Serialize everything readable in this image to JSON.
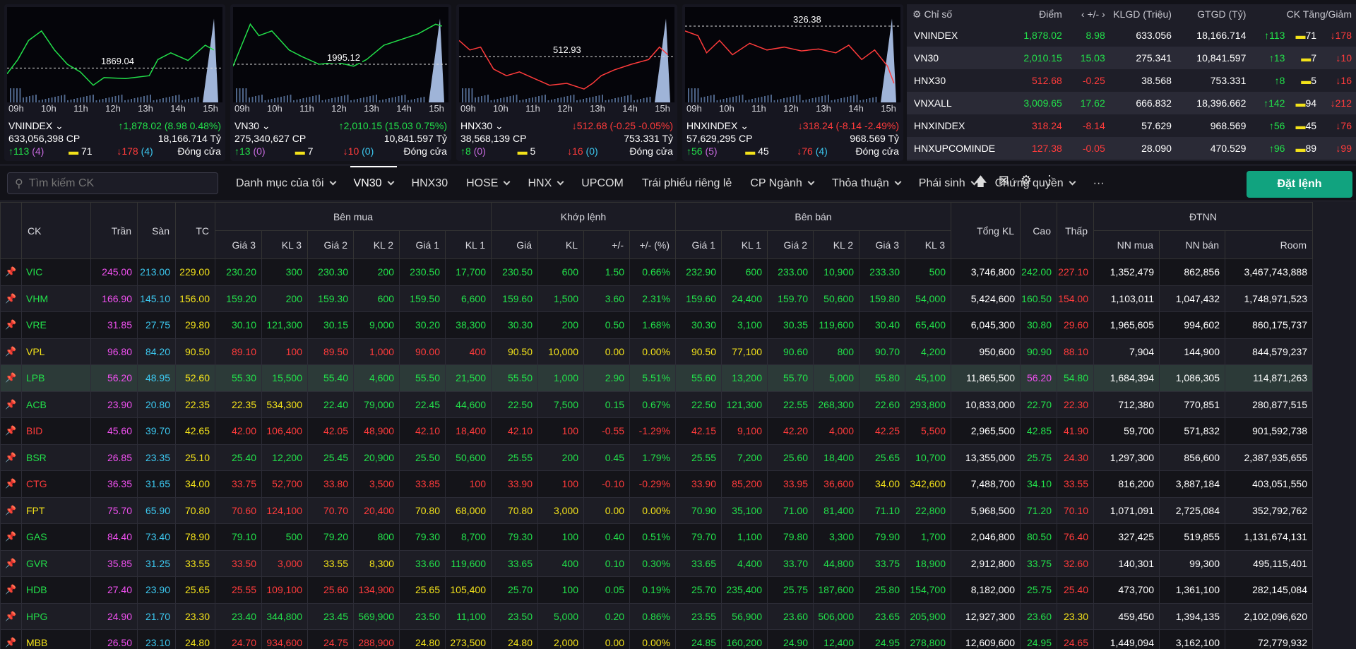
{
  "charts": [
    {
      "name": "VNINDEX",
      "ref_label": "1869.04",
      "change": "↑1,878.02 (8.98 0.48%)",
      "dir": "up",
      "volume": "633,056,398 CP",
      "value": "18,166.714 Tỷ",
      "up": "↑113",
      "up_ceil": "(4)",
      "ref": "71",
      "down": "↓178",
      "down_floor": "(4)",
      "status": "Đóng cửa"
    },
    {
      "name": "VN30",
      "ref_label": "1995.12",
      "change": "↑2,010.15 (15.03 0.75%)",
      "dir": "up",
      "volume": "275,340,627 CP",
      "value": "10,841.597 Tỷ",
      "up": "↑13",
      "up_ceil": "(0)",
      "ref": "7",
      "down": "↓10",
      "down_floor": "(0)",
      "status": "Đóng cửa"
    },
    {
      "name": "HNX30",
      "ref_label": "512.93",
      "change": "↓512.68 (-0.25 -0.05%)",
      "dir": "dn",
      "volume": "38,568,139 CP",
      "value": "753.331 Tỷ",
      "up": "↑8",
      "up_ceil": "(0)",
      "ref": "5",
      "down": "↓16",
      "down_floor": "(0)",
      "status": "Đóng cửa"
    },
    {
      "name": "HNXINDEX",
      "ref_label": "326.38",
      "change": "↓318.24 (-8.14 -2.49%)",
      "dir": "dn",
      "volume": "57,629,295 CP",
      "value": "968.569 Tỷ",
      "up": "↑56",
      "up_ceil": "(5)",
      "ref": "45",
      "down": "↓76",
      "down_floor": "(4)",
      "status": "Đóng cửa"
    }
  ],
  "time_ticks": [
    "09h",
    "10h",
    "11h",
    "12h",
    "13h",
    "14h",
    "15h"
  ],
  "index_table": {
    "headers": [
      "Chỉ số",
      "Điểm",
      "+/-",
      "KLGD (Triệu)",
      "GTGD (Tỷ)",
      "CK Tăng/Giảm"
    ],
    "rows": [
      {
        "name": "VNINDEX",
        "point": "1,878.02",
        "chg": "8.98",
        "vol": "633.056",
        "val": "18,166.714",
        "up": "↑113",
        "ref": "71",
        "down": "↓178",
        "dir": "up"
      },
      {
        "name": "VN30",
        "point": "2,010.15",
        "chg": "15.03",
        "vol": "275.341",
        "val": "10,841.597",
        "up": "↑13",
        "ref": "7",
        "down": "↓10",
        "dir": "up"
      },
      {
        "name": "HNX30",
        "point": "512.68",
        "chg": "-0.25",
        "vol": "38.568",
        "val": "753.331",
        "up": "↑8",
        "ref": "5",
        "down": "↓16",
        "dir": "dn"
      },
      {
        "name": "VNXALL",
        "point": "3,009.65",
        "chg": "17.62",
        "vol": "666.832",
        "val": "18,396.662",
        "up": "↑142",
        "ref": "94",
        "down": "↓212",
        "dir": "up"
      },
      {
        "name": "HNXINDEX",
        "point": "318.24",
        "chg": "-8.14",
        "vol": "57.629",
        "val": "968.569",
        "up": "↑56",
        "ref": "45",
        "down": "↓76",
        "dir": "dn"
      },
      {
        "name": "HNXUPCOMINDE",
        "point": "127.38",
        "chg": "-0.05",
        "vol": "28.090",
        "val": "470.529",
        "up": "↑96",
        "ref": "89",
        "down": "↓99",
        "dir": "dn"
      }
    ]
  },
  "toolbar": {
    "search_placeholder": "Tìm kiếm CK",
    "tabs": [
      {
        "label": "Danh mục của tôi",
        "chev": true
      },
      {
        "label": "VN30",
        "chev": true,
        "active": true
      },
      {
        "label": "HNX30",
        "chev": false
      },
      {
        "label": "HOSE",
        "chev": true
      },
      {
        "label": "HNX",
        "chev": true
      },
      {
        "label": "UPCOM",
        "chev": false
      },
      {
        "label": "Trái phiếu riêng lẻ",
        "chev": false
      },
      {
        "label": "CP Ngành",
        "chev": true
      },
      {
        "label": "Thỏa thuận",
        "chev": true
      },
      {
        "label": "Phái sinh",
        "chev": true
      },
      {
        "label": "Chứng quyền",
        "chev": true
      }
    ],
    "more": "···",
    "order_button": "Đặt lệnh"
  },
  "grid": {
    "groups": {
      "ck": "CK",
      "tran": "Trần",
      "san": "Sàn",
      "tc": "TC",
      "buy": "Bên mua",
      "match": "Khớp lệnh",
      "sell": "Bên bán",
      "total": "Tổng KL",
      "high": "Cao",
      "low": "Thấp",
      "foreign": "ĐTNN"
    },
    "sub": [
      "Giá 3",
      "KL 3",
      "Giá 2",
      "KL 2",
      "Giá 1",
      "KL 1",
      "Giá",
      "KL",
      "+/-",
      "+/- (%)",
      "Giá 1",
      "KL 1",
      "Giá 2",
      "KL 2",
      "Giá 3",
      "KL 3",
      "NN mua",
      "NN bán",
      "Room"
    ],
    "rows": [
      {
        "pin": "red",
        "c": [
          "VIC",
          "245.00",
          "213.00",
          "229.00",
          "230.20",
          "300",
          "230.30",
          "200",
          "230.50",
          "17,700",
          "230.50",
          "600",
          "1.50",
          "0.66%",
          "232.90",
          "600",
          "233.00",
          "10,900",
          "233.30",
          "500",
          "3,746,800",
          "242.00",
          "227.10",
          "1,352,479",
          "862,856",
          "3,467,743,888"
        ],
        "k": [
          "up",
          "ceil",
          "floor",
          "ref",
          "up",
          "up",
          "up",
          "up",
          "up",
          "up",
          "up",
          "up",
          "up",
          "up",
          "up",
          "up",
          "up",
          "up",
          "up",
          "up",
          "wh",
          "up",
          "dn",
          "wh",
          "wh",
          "wh"
        ]
      },
      {
        "pin": "red",
        "c": [
          "VHM",
          "166.90",
          "145.10",
          "156.00",
          "159.20",
          "200",
          "159.30",
          "600",
          "159.50",
          "6,600",
          "159.60",
          "1,500",
          "3.60",
          "2.31%",
          "159.60",
          "24,400",
          "159.70",
          "50,600",
          "159.80",
          "54,000",
          "5,424,600",
          "160.50",
          "154.00",
          "1,103,011",
          "1,047,432",
          "1,748,971,523"
        ],
        "k": [
          "up",
          "ceil",
          "floor",
          "ref",
          "up",
          "up",
          "up",
          "up",
          "up",
          "up",
          "up",
          "up",
          "up",
          "up",
          "up",
          "up",
          "up",
          "up",
          "up",
          "up",
          "wh",
          "up",
          "dn",
          "wh",
          "wh",
          "wh"
        ]
      },
      {
        "pin": "red",
        "c": [
          "VRE",
          "31.85",
          "27.75",
          "29.80",
          "30.10",
          "121,300",
          "30.15",
          "9,000",
          "30.20",
          "38,300",
          "30.30",
          "200",
          "0.50",
          "1.68%",
          "30.30",
          "3,100",
          "30.35",
          "119,600",
          "30.40",
          "65,400",
          "6,045,300",
          "30.80",
          "29.60",
          "1,965,605",
          "994,602",
          "860,175,737"
        ],
        "k": [
          "up",
          "ceil",
          "floor",
          "ref",
          "up",
          "up",
          "up",
          "up",
          "up",
          "up",
          "up",
          "up",
          "up",
          "up",
          "up",
          "up",
          "up",
          "up",
          "up",
          "up",
          "wh",
          "up",
          "dn",
          "wh",
          "wh",
          "wh"
        ]
      },
      {
        "pin": "red",
        "c": [
          "VPL",
          "96.80",
          "84.20",
          "90.50",
          "89.10",
          "100",
          "89.50",
          "1,000",
          "90.00",
          "400",
          "90.50",
          "10,000",
          "0.00",
          "0.00%",
          "90.50",
          "77,100",
          "90.60",
          "800",
          "90.70",
          "4,200",
          "950,600",
          "90.90",
          "88.10",
          "7,904",
          "144,900",
          "844,579,237"
        ],
        "k": [
          "ref",
          "ceil",
          "floor",
          "ref",
          "dn",
          "dn",
          "dn",
          "dn",
          "dn",
          "dn",
          "ref",
          "ref",
          "ref",
          "ref",
          "ref",
          "ref",
          "up",
          "up",
          "up",
          "up",
          "wh",
          "up",
          "dn",
          "wh",
          "wh",
          "wh"
        ]
      },
      {
        "pin": "gray",
        "hl": true,
        "c": [
          "LPB",
          "56.20",
          "48.95",
          "52.60",
          "55.30",
          "15,500",
          "55.40",
          "4,600",
          "55.50",
          "21,500",
          "55.50",
          "1,000",
          "2.90",
          "5.51%",
          "55.60",
          "13,200",
          "55.70",
          "5,000",
          "55.80",
          "45,100",
          "11,865,500",
          "56.20",
          "54.80",
          "1,684,394",
          "1,086,305",
          "114,871,263"
        ],
        "k": [
          "up",
          "ceil",
          "floor",
          "ref",
          "up",
          "up",
          "up",
          "up",
          "up",
          "up",
          "up",
          "up",
          "up",
          "up",
          "up",
          "up",
          "up",
          "up",
          "up",
          "up",
          "wh",
          "ceil",
          "up",
          "wh",
          "wh",
          "wh"
        ]
      },
      {
        "pin": "gray",
        "c": [
          "ACB",
          "23.90",
          "20.80",
          "22.35",
          "22.35",
          "534,300",
          "22.40",
          "79,000",
          "22.45",
          "44,600",
          "22.50",
          "7,500",
          "0.15",
          "0.67%",
          "22.50",
          "121,300",
          "22.55",
          "268,300",
          "22.60",
          "293,800",
          "10,833,000",
          "22.70",
          "22.30",
          "712,380",
          "770,851",
          "280,877,515"
        ],
        "k": [
          "up",
          "ceil",
          "floor",
          "ref",
          "ref",
          "ref",
          "up",
          "up",
          "up",
          "up",
          "up",
          "up",
          "up",
          "up",
          "up",
          "up",
          "up",
          "up",
          "up",
          "up",
          "wh",
          "up",
          "dn",
          "wh",
          "wh",
          "wh"
        ]
      },
      {
        "pin": "gray",
        "c": [
          "BID",
          "45.60",
          "39.70",
          "42.65",
          "42.00",
          "106,400",
          "42.05",
          "48,900",
          "42.10",
          "18,400",
          "42.10",
          "100",
          "-0.55",
          "-1.29%",
          "42.15",
          "9,100",
          "42.20",
          "4,000",
          "42.25",
          "5,500",
          "2,965,500",
          "42.85",
          "41.90",
          "59,700",
          "571,832",
          "901,592,738"
        ],
        "k": [
          "dn",
          "ceil",
          "floor",
          "ref",
          "dn",
          "dn",
          "dn",
          "dn",
          "dn",
          "dn",
          "dn",
          "dn",
          "dn",
          "dn",
          "dn",
          "dn",
          "dn",
          "dn",
          "dn",
          "dn",
          "wh",
          "up",
          "dn",
          "wh",
          "wh",
          "wh"
        ]
      },
      {
        "pin": "gray",
        "c": [
          "BSR",
          "26.85",
          "23.35",
          "25.10",
          "25.40",
          "12,200",
          "25.45",
          "20,900",
          "25.50",
          "50,600",
          "25.55",
          "200",
          "0.45",
          "1.79%",
          "25.55",
          "7,200",
          "25.60",
          "18,400",
          "25.65",
          "10,700",
          "13,355,000",
          "25.75",
          "24.30",
          "1,297,300",
          "856,600",
          "2,387,935,655"
        ],
        "k": [
          "up",
          "ceil",
          "floor",
          "ref",
          "up",
          "up",
          "up",
          "up",
          "up",
          "up",
          "up",
          "up",
          "up",
          "up",
          "up",
          "up",
          "up",
          "up",
          "up",
          "up",
          "wh",
          "up",
          "dn",
          "wh",
          "wh",
          "wh"
        ]
      },
      {
        "pin": "gray",
        "c": [
          "CTG",
          "36.35",
          "31.65",
          "34.00",
          "33.75",
          "52,700",
          "33.80",
          "3,500",
          "33.85",
          "100",
          "33.90",
          "100",
          "-0.10",
          "-0.29%",
          "33.90",
          "85,200",
          "33.95",
          "36,600",
          "34.00",
          "342,600",
          "7,488,700",
          "34.10",
          "33.55",
          "816,200",
          "3,887,184",
          "403,051,550"
        ],
        "k": [
          "dn",
          "ceil",
          "floor",
          "ref",
          "dn",
          "dn",
          "dn",
          "dn",
          "dn",
          "dn",
          "dn",
          "dn",
          "dn",
          "dn",
          "dn",
          "dn",
          "dn",
          "dn",
          "ref",
          "ref",
          "wh",
          "up",
          "dn",
          "wh",
          "wh",
          "wh"
        ]
      },
      {
        "pin": "gray",
        "c": [
          "FPT",
          "75.70",
          "65.90",
          "70.80",
          "70.60",
          "124,100",
          "70.70",
          "20,400",
          "70.80",
          "68,000",
          "70.80",
          "3,000",
          "0.00",
          "0.00%",
          "70.90",
          "35,100",
          "71.00",
          "81,400",
          "71.10",
          "22,800",
          "5,968,500",
          "71.20",
          "70.10",
          "1,071,091",
          "2,725,084",
          "352,792,762"
        ],
        "k": [
          "ref",
          "ceil",
          "floor",
          "ref",
          "dn",
          "dn",
          "dn",
          "dn",
          "ref",
          "ref",
          "ref",
          "ref",
          "ref",
          "ref",
          "up",
          "up",
          "up",
          "up",
          "up",
          "up",
          "wh",
          "up",
          "dn",
          "wh",
          "wh",
          "wh"
        ]
      },
      {
        "pin": "gray",
        "c": [
          "GAS",
          "84.40",
          "73.40",
          "78.90",
          "79.10",
          "500",
          "79.20",
          "800",
          "79.30",
          "8,700",
          "79.30",
          "100",
          "0.40",
          "0.51%",
          "79.70",
          "1,100",
          "79.80",
          "3,300",
          "79.90",
          "1,700",
          "2,046,800",
          "80.50",
          "76.40",
          "327,425",
          "519,855",
          "1,131,674,131"
        ],
        "k": [
          "up",
          "ceil",
          "floor",
          "ref",
          "up",
          "up",
          "up",
          "up",
          "up",
          "up",
          "up",
          "up",
          "up",
          "up",
          "up",
          "up",
          "up",
          "up",
          "up",
          "up",
          "wh",
          "up",
          "dn",
          "wh",
          "wh",
          "wh"
        ]
      },
      {
        "pin": "gray",
        "c": [
          "GVR",
          "35.85",
          "31.25",
          "33.55",
          "33.50",
          "3,000",
          "33.55",
          "8,300",
          "33.60",
          "119,600",
          "33.65",
          "400",
          "0.10",
          "0.30%",
          "33.65",
          "4,400",
          "33.70",
          "44,800",
          "33.75",
          "18,900",
          "2,912,800",
          "33.75",
          "32.60",
          "140,301",
          "99,300",
          "495,115,401"
        ],
        "k": [
          "up",
          "ceil",
          "floor",
          "ref",
          "dn",
          "dn",
          "ref",
          "ref",
          "up",
          "up",
          "up",
          "up",
          "up",
          "up",
          "up",
          "up",
          "up",
          "up",
          "up",
          "up",
          "wh",
          "up",
          "dn",
          "wh",
          "wh",
          "wh"
        ]
      },
      {
        "pin": "gray",
        "c": [
          "HDB",
          "27.40",
          "23.90",
          "25.65",
          "25.55",
          "109,100",
          "25.60",
          "134,900",
          "25.65",
          "105,400",
          "25.70",
          "100",
          "0.05",
          "0.19%",
          "25.70",
          "235,400",
          "25.75",
          "187,600",
          "25.80",
          "154,700",
          "8,182,000",
          "25.75",
          "25.40",
          "473,700",
          "1,361,100",
          "282,145,084"
        ],
        "k": [
          "up",
          "ceil",
          "floor",
          "ref",
          "dn",
          "dn",
          "dn",
          "dn",
          "ref",
          "ref",
          "up",
          "up",
          "up",
          "up",
          "up",
          "up",
          "up",
          "up",
          "up",
          "up",
          "wh",
          "up",
          "dn",
          "wh",
          "wh",
          "wh"
        ]
      },
      {
        "pin": "gray",
        "c": [
          "HPG",
          "24.90",
          "21.70",
          "23.30",
          "23.40",
          "344,800",
          "23.45",
          "569,900",
          "23.50",
          "11,100",
          "23.50",
          "5,000",
          "0.20",
          "0.86%",
          "23.55",
          "56,900",
          "23.60",
          "506,000",
          "23.65",
          "205,900",
          "12,927,300",
          "23.60",
          "23.30",
          "459,450",
          "1,394,135",
          "2,102,096,620"
        ],
        "k": [
          "up",
          "ceil",
          "floor",
          "ref",
          "up",
          "up",
          "up",
          "up",
          "up",
          "up",
          "up",
          "up",
          "up",
          "up",
          "up",
          "up",
          "up",
          "up",
          "up",
          "up",
          "wh",
          "up",
          "ref",
          "wh",
          "wh",
          "wh"
        ]
      },
      {
        "pin": "gray",
        "c": [
          "MBB",
          "26.50",
          "23.10",
          "24.80",
          "24.70",
          "934,600",
          "24.75",
          "288,900",
          "24.80",
          "273,500",
          "24.80",
          "2,000",
          "0.00",
          "0.00%",
          "24.85",
          "160,200",
          "24.90",
          "12,400",
          "24.95",
          "278,800",
          "12,609,600",
          "24.95",
          "24.65",
          "1,449,094",
          "3,162,100",
          "72,779,932"
        ],
        "k": [
          "ref",
          "ceil",
          "floor",
          "ref",
          "dn",
          "dn",
          "dn",
          "dn",
          "ref",
          "ref",
          "ref",
          "ref",
          "ref",
          "ref",
          "up",
          "up",
          "up",
          "up",
          "up",
          "up",
          "wh",
          "up",
          "dn",
          "wh",
          "wh",
          "wh"
        ]
      }
    ]
  }
}
